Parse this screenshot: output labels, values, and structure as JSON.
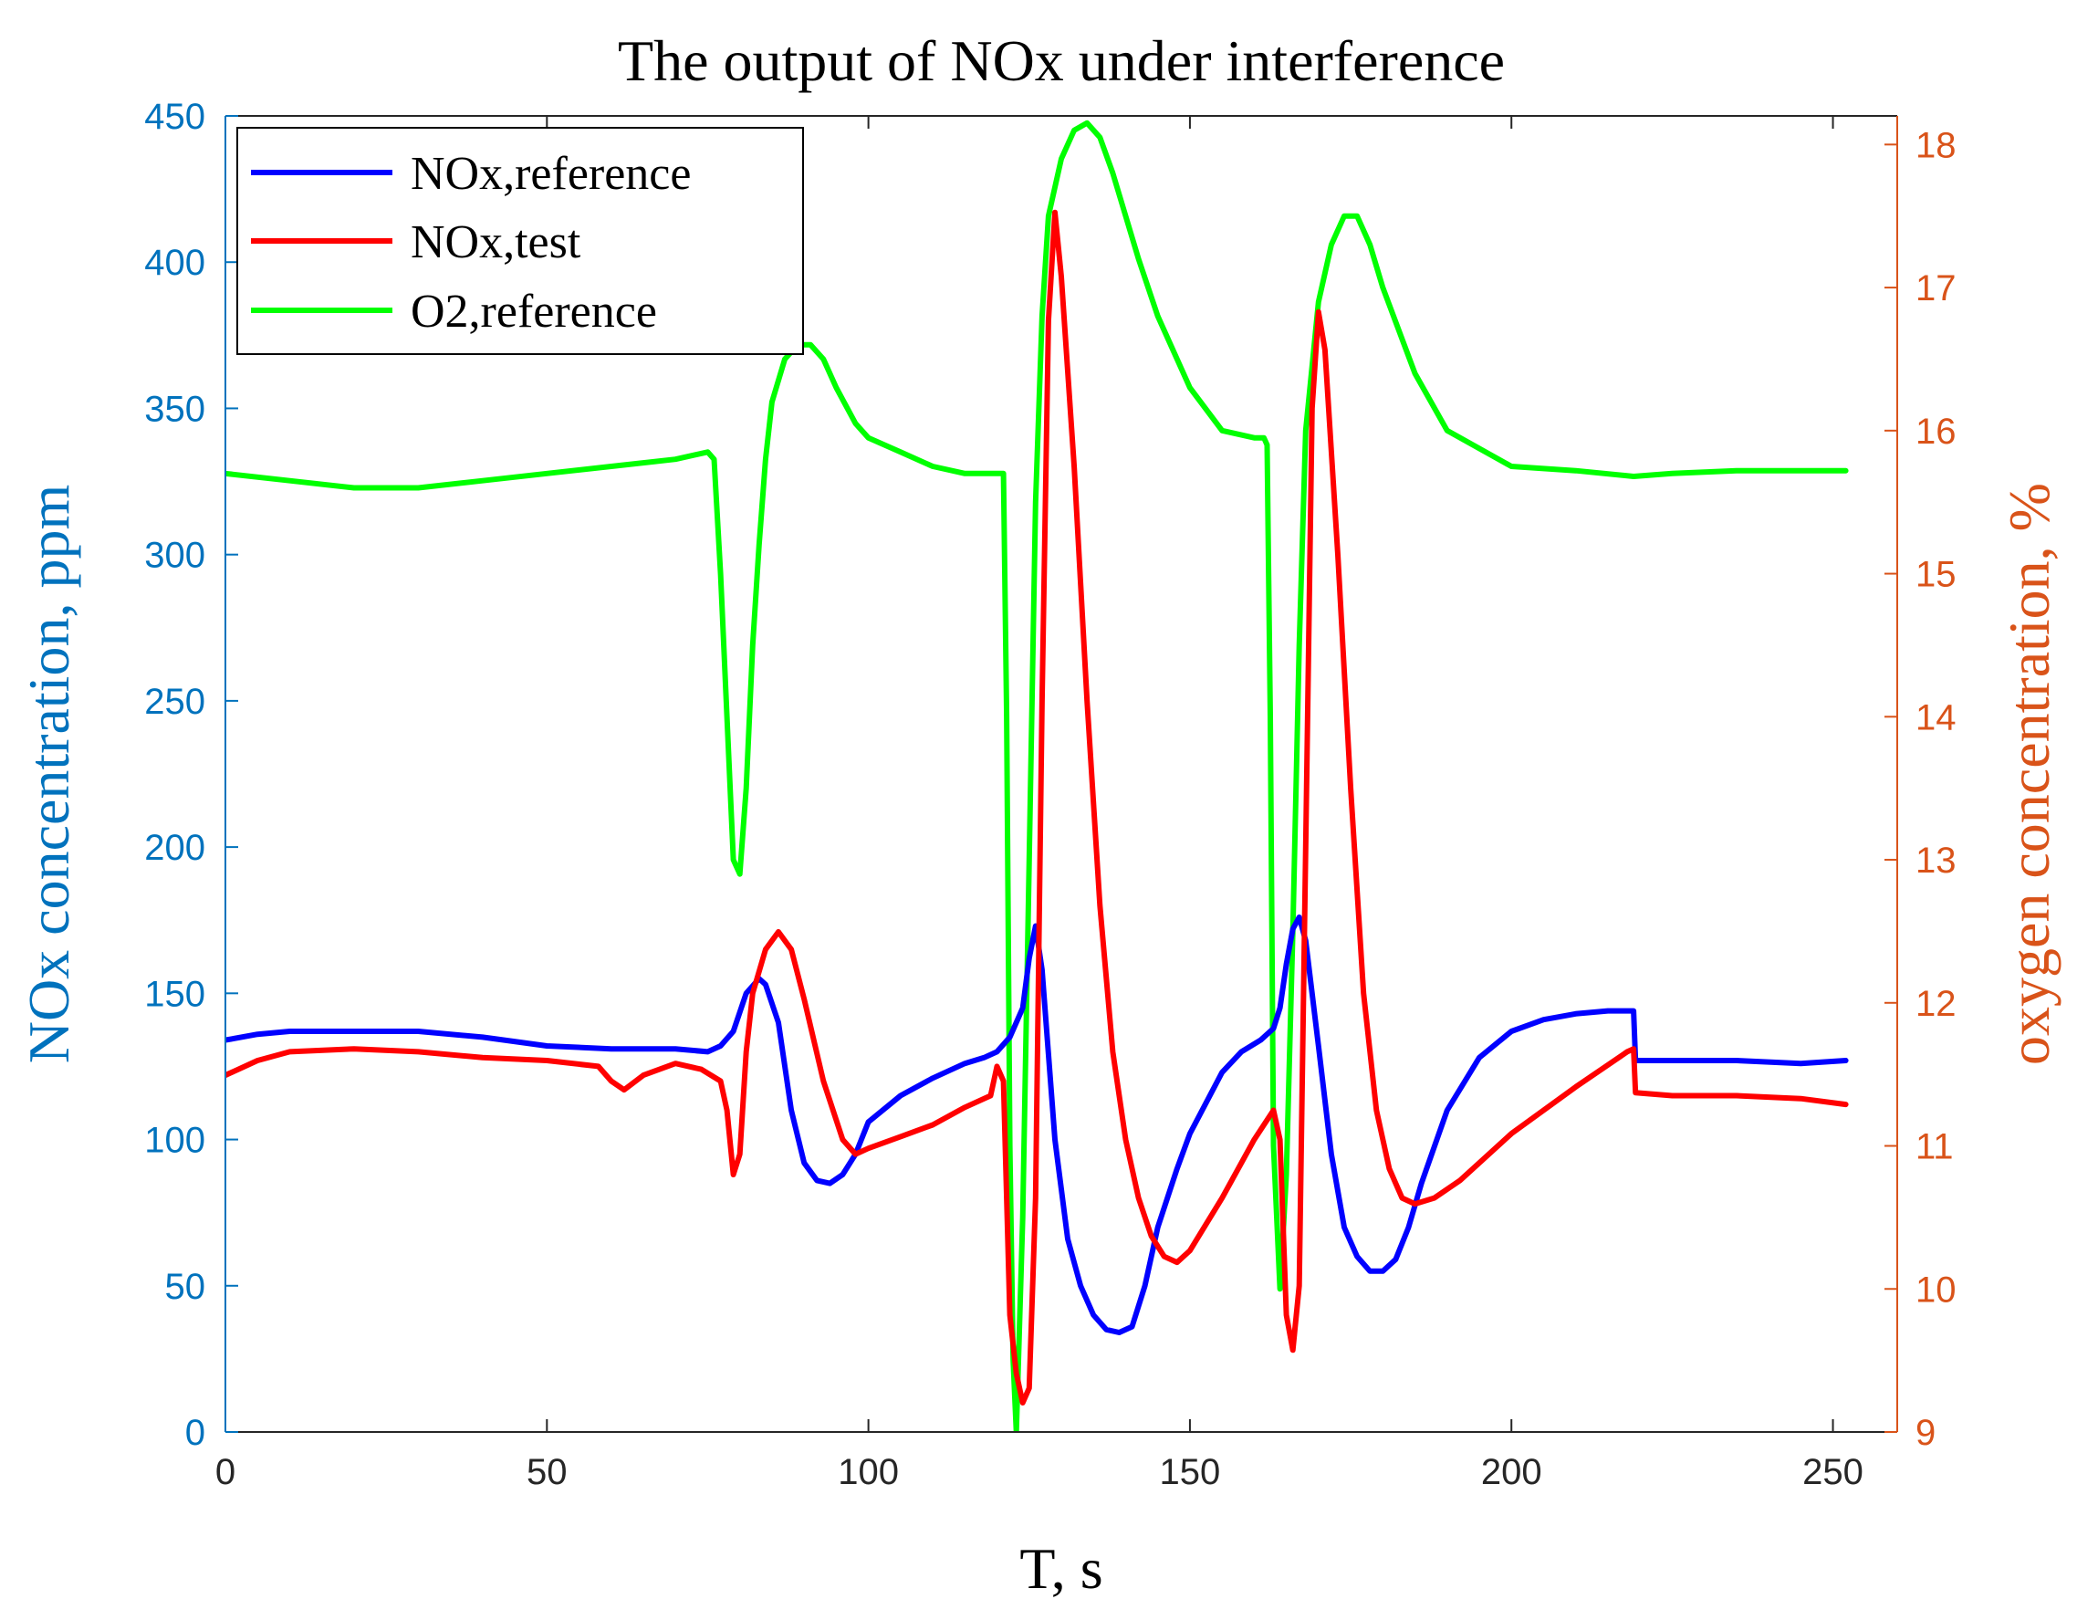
{
  "chart_data": {
    "type": "line",
    "title": "The output of NOx under interference",
    "xlabel": "T, s",
    "ylabel_left": "NOx concentration, ppm",
    "ylabel_right": "oxygen concentration, %",
    "xlim": [
      0,
      260
    ],
    "ylim_left": [
      0,
      450
    ],
    "ylim_right": [
      9,
      18.2
    ],
    "x_ticks": [
      0,
      50,
      100,
      150,
      200,
      250
    ],
    "y_ticks_left": [
      0,
      50,
      100,
      150,
      200,
      250,
      300,
      350,
      400,
      450
    ],
    "y_ticks_right": [
      9,
      10,
      11,
      12,
      13,
      14,
      15,
      16,
      17,
      18
    ],
    "grid": false,
    "legend_position": "top-left",
    "colors": {
      "left_axis": "#0072BD",
      "right_axis": "#D95319",
      "nox_reference": "#0000FF",
      "nox_test": "#FF0000",
      "o2_reference": "#00FF00"
    },
    "series": [
      {
        "name": "NOx,reference",
        "axis": "left",
        "color": "#0000FF",
        "x": [
          0,
          5,
          10,
          20,
          30,
          40,
          50,
          60,
          70,
          75,
          77,
          79,
          81,
          83,
          84,
          86,
          88,
          90,
          92,
          94,
          96,
          98,
          100,
          105,
          110,
          115,
          118,
          120,
          122,
          124,
          125,
          126,
          127,
          129,
          131,
          133,
          135,
          137,
          139,
          141,
          143,
          145,
          148,
          150,
          155,
          158,
          161,
          163,
          164,
          165,
          166,
          167,
          168,
          170,
          172,
          174,
          176,
          178,
          180,
          182,
          184,
          186,
          190,
          195,
          200,
          205,
          210,
          215,
          219,
          219.3,
          225,
          235,
          245,
          252
        ],
        "values": [
          134,
          136,
          137,
          137,
          137,
          135,
          132,
          131,
          131,
          130,
          132,
          137,
          150,
          155,
          153,
          140,
          110,
          92,
          86,
          85,
          88,
          95,
          106,
          115,
          121,
          126,
          128,
          130,
          135,
          145,
          162,
          173,
          158,
          100,
          66,
          50,
          40,
          35,
          34,
          36,
          50,
          70,
          90,
          102,
          123,
          130,
          134,
          138,
          145,
          160,
          172,
          176,
          168,
          132,
          95,
          70,
          60,
          55,
          55,
          59,
          70,
          85,
          110,
          128,
          137,
          141,
          143,
          144,
          144,
          127,
          127,
          127,
          126,
          127
        ]
      },
      {
        "name": "NOx,test",
        "axis": "left",
        "color": "#FF0000",
        "x": [
          0,
          5,
          10,
          20,
          30,
          40,
          50,
          58,
          60,
          62,
          65,
          70,
          74,
          77,
          78,
          79,
          80,
          81,
          82,
          84,
          86,
          88,
          90,
          93,
          96,
          98,
          100,
          105,
          110,
          115,
          119,
          120,
          121,
          122,
          123,
          124,
          125,
          126,
          127,
          128,
          129,
          130,
          132,
          134,
          136,
          138,
          140,
          142,
          144,
          146,
          148,
          150,
          155,
          160,
          163,
          164,
          165,
          166,
          167,
          168,
          169,
          170,
          171,
          173,
          175,
          177,
          179,
          181,
          183,
          185,
          188,
          192,
          200,
          210,
          218,
          219,
          219.3,
          225,
          235,
          245,
          252
        ],
        "values": [
          122,
          127,
          130,
          131,
          130,
          128,
          127,
          125,
          120,
          117,
          122,
          126,
          124,
          120,
          110,
          88,
          95,
          130,
          150,
          165,
          171,
          165,
          148,
          120,
          100,
          95,
          97,
          101,
          105,
          111,
          115,
          125,
          120,
          40,
          20,
          10,
          15,
          80,
          250,
          380,
          417,
          395,
          330,
          250,
          180,
          130,
          100,
          80,
          67,
          60,
          58,
          62,
          80,
          100,
          110,
          100,
          40,
          28,
          50,
          200,
          350,
          383,
          370,
          300,
          220,
          150,
          110,
          90,
          80,
          78,
          80,
          86,
          102,
          118,
          130,
          131,
          116,
          115,
          115,
          114,
          112
        ]
      },
      {
        "name": "O2,reference",
        "axis": "right",
        "color": "#00FF00",
        "x": [
          0,
          10,
          20,
          30,
          40,
          50,
          60,
          70,
          75,
          76,
          77,
          78,
          79,
          80,
          81,
          82,
          83,
          84,
          85,
          87,
          89,
          91,
          93,
          95,
          98,
          100,
          105,
          110,
          115,
          119,
          120,
          120.5,
          121,
          121.5,
          122,
          122.5,
          123,
          124,
          125,
          126,
          127,
          128,
          130,
          132,
          134,
          136,
          138,
          140,
          142,
          145,
          150,
          155,
          160,
          160.5,
          161,
          161.5,
          162,
          162.5,
          163,
          164,
          165,
          166,
          167,
          168,
          170,
          172,
          174,
          176,
          178,
          180,
          185,
          190,
          200,
          210,
          219,
          225,
          235,
          245,
          252
        ],
        "values": [
          15.7,
          15.65,
          15.6,
          15.6,
          15.65,
          15.7,
          15.75,
          15.8,
          15.85,
          15.8,
          15.0,
          14.0,
          13.0,
          12.9,
          13.5,
          14.5,
          15.2,
          15.8,
          16.2,
          16.5,
          16.6,
          16.6,
          16.5,
          16.3,
          16.05,
          15.95,
          15.85,
          15.75,
          15.7,
          15.7,
          15.7,
          15.7,
          15.7,
          14.0,
          11.0,
          9.5,
          9.0,
          10.5,
          13.0,
          15.5,
          16.8,
          17.5,
          17.9,
          18.1,
          18.15,
          18.05,
          17.8,
          17.5,
          17.2,
          16.8,
          16.3,
          16.0,
          15.95,
          15.95,
          15.95,
          15.95,
          15.9,
          14.0,
          11.0,
          10.0,
          10.8,
          12.5,
          14.5,
          16.0,
          16.9,
          17.3,
          17.5,
          17.5,
          17.3,
          17.0,
          16.4,
          16.0,
          15.75,
          15.72,
          15.68,
          15.7,
          15.72,
          15.72,
          15.72
        ]
      }
    ]
  }
}
